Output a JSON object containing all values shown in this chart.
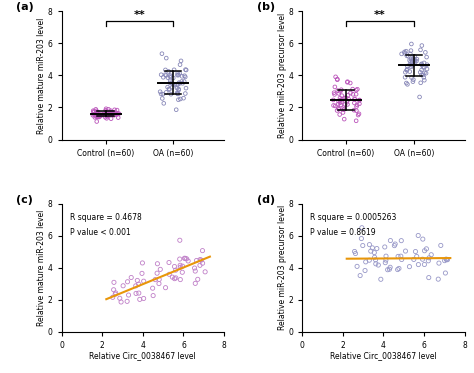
{
  "panel_a": {
    "control_mean": 1.6,
    "control_sd": 0.18,
    "oa_mean": 3.6,
    "oa_sd": 0.7,
    "ylabel": "Relative mature miR-203 level",
    "xlabel_control": "Control (n=60)",
    "xlabel_oa": "OA (n=60)",
    "ylim": [
      0,
      8
    ],
    "yticks": [
      0,
      2,
      4,
      6,
      8
    ],
    "sig_text": "**",
    "label": "(a)"
  },
  "panel_b": {
    "control_mean": 2.6,
    "control_sd": 0.65,
    "oa_mean": 4.65,
    "oa_sd": 0.65,
    "ylabel": "Relative miR-203 precursor level",
    "xlabel_control": "Control (n=60)",
    "xlabel_oa": "OA (n=60)",
    "ylim": [
      0,
      8
    ],
    "yticks": [
      0,
      2,
      4,
      6,
      8
    ],
    "sig_text": "**",
    "label": "(b)"
  },
  "panel_c": {
    "r_square": "0.4678",
    "p_value": "< 0.001",
    "slope": 0.52,
    "intercept": 0.9,
    "xlabel": "Relative Circ_0038467 level",
    "ylabel": "Relative mature miR-203 level",
    "xlim": [
      0,
      8
    ],
    "ylim": [
      0,
      8
    ],
    "xticks": [
      0,
      2,
      4,
      6,
      8
    ],
    "yticks": [
      0,
      2,
      4,
      6,
      8
    ],
    "label": "(c)",
    "line_color": "#E8960A",
    "dot_color": "#C080C8"
  },
  "panel_d": {
    "r_square": "0.0005263",
    "p_value": "0.8619",
    "slope": 0.008,
    "intercept": 4.55,
    "xlabel": "Relative Circ_0038467 level",
    "ylabel": "Relative miR-203 precursor level",
    "xlim": [
      0,
      8
    ],
    "ylim": [
      0,
      8
    ],
    "xticks": [
      0,
      2,
      4,
      6,
      8
    ],
    "yticks": [
      0,
      2,
      4,
      6,
      8
    ],
    "label": "(d)",
    "line_color": "#E8960A",
    "dot_color": "#9898C8"
  },
  "control_color_a": "#BB55BB",
  "oa_color_a": "#8888B8",
  "control_color_b": "#BB55BB",
  "oa_color_b": "#8888B8",
  "bg_color": "#FFFFFF"
}
